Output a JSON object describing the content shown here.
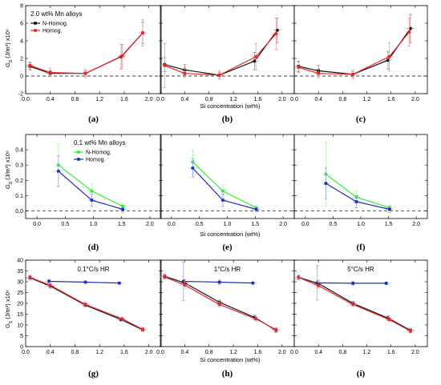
{
  "figure": {
    "rows": [
      {
        "ylabel_main": "G",
        "ylabel_rest": " (J/m³) x10⁶",
        "xlabel": "Si concentration (wt%)"
      },
      {
        "ylabel_main": "G",
        "ylabel_rest": " (J/m³) x10⁶",
        "xlabel": "Si concentration (wt%)"
      },
      {
        "ylabel_main": "G",
        "ylabel_rest": " (J/m³) x10⁶",
        "xlabel": "Si concentration (wt%)"
      }
    ],
    "colors": {
      "red": "#e8262a",
      "black": "#111111",
      "green": "#33ee33",
      "blue": "#1f2fb8",
      "errbar_red": "#f08a8a",
      "errbar_black": "#808080",
      "errbar_green": "#9af59a",
      "errbar_blue": "#8e98e0",
      "errbar_pink": "#f6a6cc"
    }
  },
  "chart_data": [
    {
      "panel": "a",
      "caption": "(a)",
      "type": "line",
      "xlim": [
        0,
        2.2
      ],
      "ylim": [
        -2,
        8
      ],
      "xticks": [
        "0.0",
        "0.4",
        "0.8",
        "1.2",
        "1.6",
        "2.0"
      ],
      "yticks": [
        "-2",
        "0",
        "2",
        "4",
        "6",
        "8"
      ],
      "show_ytick_labels": true,
      "show_xtick_labels": true,
      "annotation": "2.0 wt% Mn alloys",
      "legend": [
        {
          "label": "N-Homog.",
          "color": "#111111"
        },
        {
          "label": "Homog.",
          "color": "#e8262a"
        }
      ],
      "series": [
        {
          "name": "N-Homog.",
          "color": "#111111",
          "errcolor": "#808080",
          "x": [
            0.07,
            0.4,
            0.97,
            1.55,
            1.9
          ],
          "y": [
            1.1,
            0.3,
            0.3,
            2.2,
            4.9
          ],
          "yerr": [
            0.4,
            0.3,
            0.3,
            1.4,
            1.2
          ]
        },
        {
          "name": "Homog.",
          "color": "#e8262a",
          "errcolor": "#f08a8a",
          "x": [
            0.07,
            0.4,
            0.97,
            1.57,
            1.9
          ],
          "y": [
            1.2,
            0.4,
            0.3,
            2.3,
            4.9
          ],
          "yerr": [
            0.4,
            0.5,
            0.5,
            1.3,
            1.5
          ]
        }
      ]
    },
    {
      "panel": "b",
      "caption": "(b)",
      "type": "line",
      "xlim": [
        0,
        2.2
      ],
      "ylim": [
        -2,
        8
      ],
      "xticks": [
        "0.0",
        "0.4",
        "0.8",
        "1.2",
        "1.6",
        "2.0"
      ],
      "yticks": [
        "-2",
        "0",
        "2",
        "4",
        "6",
        "8"
      ],
      "show_ytick_labels": false,
      "show_xtick_labels": true,
      "series": [
        {
          "name": "N-Homog.",
          "color": "#111111",
          "errcolor": "#808080",
          "x": [
            0.07,
            0.4,
            0.97,
            1.55,
            1.92
          ],
          "y": [
            1.3,
            0.7,
            0.1,
            1.7,
            5.2
          ],
          "yerr": [
            0.8,
            0.6,
            0.3,
            1.0,
            1.4
          ]
        },
        {
          "name": "Homog.",
          "color": "#e8262a",
          "errcolor": "#f08a8a",
          "x": [
            0.07,
            0.4,
            0.97,
            1.57,
            1.9
          ],
          "y": [
            1.2,
            0.3,
            0.1,
            2.2,
            4.8
          ],
          "yerr": [
            2.5,
            0.5,
            0.5,
            1.5,
            1.8
          ]
        }
      ]
    },
    {
      "panel": "c",
      "caption": "(c)",
      "type": "line",
      "xlim": [
        0,
        2.2
      ],
      "ylim": [
        -2,
        8
      ],
      "xticks": [
        "0.0",
        "0.4",
        "0.8",
        "1.2",
        "1.6",
        "2.0"
      ],
      "yticks": [
        "-2",
        "0",
        "2",
        "4",
        "6",
        "8"
      ],
      "show_ytick_labels": false,
      "show_xtick_labels": true,
      "series": [
        {
          "name": "N-Homog.",
          "color": "#111111",
          "errcolor": "#808080",
          "x": [
            0.07,
            0.4,
            0.97,
            1.55,
            1.92
          ],
          "y": [
            1.1,
            0.6,
            0.2,
            1.8,
            5.4
          ],
          "yerr": [
            0.6,
            0.6,
            0.3,
            1.0,
            1.6
          ]
        },
        {
          "name": "Homog.",
          "color": "#e8262a",
          "errcolor": "#f08a8a",
          "x": [
            0.07,
            0.4,
            0.97,
            1.57,
            1.9
          ],
          "y": [
            1.0,
            0.3,
            0.2,
            2.2,
            5.0
          ],
          "yerr": [
            0.6,
            0.5,
            0.5,
            1.6,
            1.6
          ]
        }
      ]
    },
    {
      "panel": "d",
      "caption": "(d)",
      "type": "line",
      "xlim": [
        -0.2,
        2.2
      ],
      "ylim": [
        -0.05,
        0.5
      ],
      "xticks": [
        "0.0",
        "0.5",
        "1.0",
        "1.5",
        "2.0"
      ],
      "yticks": [
        "0.0",
        "0.1",
        "0.2",
        "0.3",
        "0.4"
      ],
      "show_ytick_labels": true,
      "show_xtick_labels": true,
      "annotation": "0.1 wt% Mn alloys",
      "legend": [
        {
          "label": "N-Homog.",
          "color": "#33ee33"
        },
        {
          "label": "Homog.",
          "color": "#1f2fb8"
        }
      ],
      "series": [
        {
          "name": "N-Homog.",
          "color": "#33ee33",
          "errcolor": "#9af59a",
          "x": [
            0.38,
            0.97,
            1.52
          ],
          "y": [
            0.3,
            0.13,
            0.03
          ],
          "yerr": [
            0.14,
            0.05,
            0.02
          ]
        },
        {
          "name": "Homog.",
          "color": "#1f2fb8",
          "errcolor": "#8e98e0",
          "x": [
            0.38,
            0.97,
            1.52
          ],
          "y": [
            0.26,
            0.07,
            0.01
          ],
          "yerr": [
            0.1,
            0.04,
            0.02
          ]
        }
      ]
    },
    {
      "panel": "e",
      "caption": "(e)",
      "type": "line",
      "xlim": [
        -0.2,
        2.2
      ],
      "ylim": [
        -0.05,
        0.5
      ],
      "xticks": [
        "0.0",
        "0.5",
        "1.0",
        "1.5",
        "2.0"
      ],
      "yticks": [
        "0.0",
        "0.1",
        "0.2",
        "0.3",
        "0.4"
      ],
      "show_ytick_labels": false,
      "show_xtick_labels": true,
      "series": [
        {
          "name": "N-Homog.",
          "color": "#33ee33",
          "errcolor": "#9af59a",
          "x": [
            0.38,
            0.92,
            1.52
          ],
          "y": [
            0.32,
            0.13,
            0.02
          ],
          "yerr": [
            0.08,
            0.04,
            0.015
          ]
        },
        {
          "name": "Homog.",
          "color": "#1f2fb8",
          "errcolor": "#8e98e0",
          "x": [
            0.38,
            0.92,
            1.52
          ],
          "y": [
            0.28,
            0.07,
            0.01
          ],
          "yerr": [
            0.06,
            0.04,
            0.015
          ]
        }
      ]
    },
    {
      "panel": "f",
      "caption": "(f)",
      "type": "line",
      "xlim": [
        -0.2,
        2.2
      ],
      "ylim": [
        -0.05,
        0.5
      ],
      "xticks": [
        "0.0",
        "0.5",
        "1.0",
        "1.5",
        "2.0"
      ],
      "yticks": [
        "0.0",
        "0.1",
        "0.2",
        "0.3",
        "0.4"
      ],
      "show_ytick_labels": false,
      "show_xtick_labels": true,
      "series": [
        {
          "name": "N-Homog.",
          "color": "#33ee33",
          "errcolor": "#9af59a",
          "x": [
            0.37,
            0.92,
            1.52
          ],
          "y": [
            0.24,
            0.09,
            0.02
          ],
          "yerr": [
            0.21,
            0.04,
            0.02
          ]
        },
        {
          "name": "Homog.",
          "color": "#1f2fb8",
          "errcolor": "#8e98e0",
          "x": [
            0.37,
            0.92,
            1.52
          ],
          "y": [
            0.18,
            0.06,
            0.01
          ],
          "yerr": [
            0.1,
            0.04,
            0.02
          ]
        }
      ]
    },
    {
      "panel": "g",
      "caption": "(g)",
      "type": "line",
      "xlim": [
        0,
        2.2
      ],
      "ylim": [
        0,
        40
      ],
      "xticks": [
        "0.0",
        "0.4",
        "0.8",
        "1.2",
        "1.6",
        "2.0"
      ],
      "yticks": [
        "0",
        "5",
        "10",
        "15",
        "20",
        "25",
        "30",
        "35",
        "40"
      ],
      "show_ytick_labels": true,
      "show_xtick_labels": true,
      "annotation": "0.1°C/s HR",
      "series": [
        {
          "name": "",
          "color": "#1f2fb8",
          "errcolor": "#8e98e0",
          "x": [
            0.38,
            0.97,
            1.52
          ],
          "y": [
            30.2,
            29.8,
            29.4
          ],
          "yerr": [
            0.8,
            0.6,
            0.5
          ]
        },
        {
          "name": "",
          "color": "#111111",
          "errcolor": "#808080",
          "x": [
            0.07,
            0.4,
            0.97,
            1.55,
            1.9
          ],
          "y": [
            31.8,
            28.0,
            19.2,
            12.5,
            7.8
          ],
          "yerr": [
            1.0,
            1.0,
            1.0,
            0.8,
            0.8
          ]
        },
        {
          "name": "",
          "color": "#e8262a",
          "errcolor": "#f6a6cc",
          "x": [
            0.07,
            0.4,
            0.97,
            1.57,
            1.9
          ],
          "y": [
            32.0,
            28.4,
            19.5,
            12.8,
            8.0
          ],
          "yerr": [
            1.2,
            1.2,
            1.2,
            1.0,
            1.0
          ]
        }
      ]
    },
    {
      "panel": "h",
      "caption": "(h)",
      "type": "line",
      "xlim": [
        0,
        2.2
      ],
      "ylim": [
        0,
        40
      ],
      "xticks": [
        "0.0",
        "0.4",
        "0.8",
        "1.2",
        "1.6",
        "2.0"
      ],
      "yticks": [
        "0",
        "5",
        "10",
        "15",
        "20",
        "25",
        "30",
        "35",
        "40"
      ],
      "show_ytick_labels": false,
      "show_xtick_labels": true,
      "annotation": "1°C/s HR",
      "series": [
        {
          "name": "",
          "color": "#1f2fb8",
          "errcolor": "#8e98e0",
          "x": [
            0.38,
            0.97,
            1.52
          ],
          "y": [
            30.2,
            29.8,
            29.4
          ],
          "yerr": [
            9.0,
            1.0,
            0.6
          ]
        },
        {
          "name": "",
          "color": "#111111",
          "errcolor": "#808080",
          "x": [
            0.07,
            0.4,
            0.97,
            1.55,
            1.9
          ],
          "y": [
            32.5,
            29.5,
            20.5,
            13.5,
            7.5
          ],
          "yerr": [
            1.0,
            1.5,
            1.0,
            1.0,
            1.0
          ]
        },
        {
          "name": "",
          "color": "#e8262a",
          "errcolor": "#f6a6cc",
          "x": [
            0.07,
            0.4,
            0.97,
            1.57,
            1.9
          ],
          "y": [
            32.2,
            28.5,
            19.5,
            12.8,
            7.8
          ],
          "yerr": [
            1.2,
            1.5,
            1.2,
            1.0,
            1.0
          ]
        }
      ]
    },
    {
      "panel": "i",
      "caption": "(i)",
      "type": "line",
      "xlim": [
        0,
        2.2
      ],
      "ylim": [
        0,
        40
      ],
      "xticks": [
        "0.0",
        "0.4",
        "0.8",
        "1.2",
        "1.6",
        "2.0"
      ],
      "yticks": [
        "0",
        "5",
        "10",
        "15",
        "20",
        "25",
        "30",
        "35",
        "40"
      ],
      "show_ytick_labels": false,
      "show_xtick_labels": true,
      "annotation": "5°C/s HR",
      "series": [
        {
          "name": "",
          "color": "#1f2fb8",
          "errcolor": "#8e98e0",
          "x": [
            0.38,
            0.97,
            1.52
          ],
          "y": [
            29.5,
            29.3,
            29.3
          ],
          "yerr": [
            8.0,
            0.8,
            0.6
          ]
        },
        {
          "name": "",
          "color": "#111111",
          "errcolor": "#808080",
          "x": [
            0.07,
            0.4,
            0.97,
            1.55,
            1.92
          ],
          "y": [
            32.0,
            29.2,
            20.0,
            13.2,
            7.5
          ],
          "yerr": [
            1.0,
            1.5,
            1.0,
            1.0,
            1.0
          ]
        },
        {
          "name": "",
          "color": "#e8262a",
          "errcolor": "#f6a6cc",
          "x": [
            0.07,
            0.4,
            0.97,
            1.57,
            1.92
          ],
          "y": [
            32.0,
            28.2,
            19.5,
            12.5,
            7.2
          ],
          "yerr": [
            1.2,
            1.5,
            1.2,
            1.0,
            1.0
          ]
        }
      ]
    }
  ]
}
